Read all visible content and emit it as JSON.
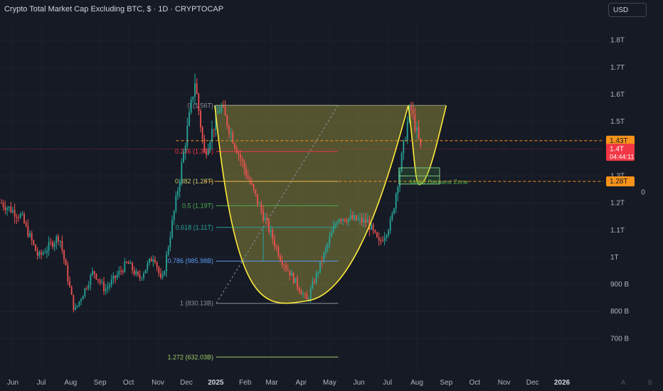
{
  "header": {
    "title": "Crypto Total Market Cap Excluding BTC, $ · 1D · CRYPTOCAP",
    "currency": "USD"
  },
  "price_axis": {
    "ticks": [
      {
        "label": "1.8T",
        "value": 1800
      },
      {
        "label": "1.7T",
        "value": 1700
      },
      {
        "label": "1.6T",
        "value": 1600
      },
      {
        "label": "1.5T",
        "value": 1500
      },
      {
        "label": "1.3T",
        "value": 1300
      },
      {
        "label": "1.2T",
        "value": 1200
      },
      {
        "label": "1.1T",
        "value": 1100
      },
      {
        "label": "1T",
        "value": 1000
      },
      {
        "label": "900 B",
        "value": 900
      },
      {
        "label": "800 B",
        "value": 800
      },
      {
        "label": "700 B",
        "value": 700
      }
    ],
    "badges": [
      {
        "label": "1.43T",
        "value": 1430,
        "color": "#f7931a",
        "text_color": "#131722"
      },
      {
        "label": "1.4T",
        "sub": "04:44:11",
        "value": 1400,
        "color": "#f23645",
        "text_color": "#ffffff"
      },
      {
        "label": "1.28T",
        "value": 1280,
        "color": "#f7931a",
        "text_color": "#131722"
      }
    ],
    "right_label": "0"
  },
  "time_axis": {
    "labels": [
      "Jun",
      "Jul",
      "Aug",
      "Sep",
      "Oct",
      "Nov",
      "Dec",
      "2025",
      "Feb",
      "Mar",
      "Apr",
      "May",
      "Jun",
      "Jul",
      "Aug",
      "Sep",
      "Oct",
      "Nov",
      "Dec",
      "2026"
    ],
    "bold": [
      "2025",
      "2026"
    ],
    "corner_a": "A",
    "corner_b": "B"
  },
  "fib_levels": [
    {
      "label": "0 (1.56T)",
      "value": 1560,
      "color": "#8c8f99"
    },
    {
      "label": "0.236 (1.39T)",
      "value": 1390,
      "color": "#f23645"
    },
    {
      "label": "0.382 (1.28T)",
      "value": 1280,
      "color": "#c9c96a"
    },
    {
      "label": "0.5 (1.19T)",
      "value": 1190,
      "color": "#4caf50"
    },
    {
      "label": "0.618 (1.11T)",
      "value": 1110,
      "color": "#26a69a"
    },
    {
      "label": "0.786 (985.98B)",
      "value": 985.98,
      "color": "#5b9cf6"
    },
    {
      "label": "1 (830.13B)",
      "value": 830.13,
      "color": "#8c8f99"
    },
    {
      "label": "1.272 (632.03B)",
      "value": 632.03,
      "color": "#9ccc65"
    }
  ],
  "annotations": {
    "demand_zone_label": "Major Demand Zone",
    "demand_zone_color": "#4caf50",
    "cup_color": "#ffeb3b",
    "dashed_level_color": "#f7931a",
    "current_price_line_color": "#f23645"
  },
  "colors": {
    "background": "#161a25",
    "up": "#26a69a",
    "down": "#ef5350",
    "text": "#b2b5be"
  },
  "chart_data": {
    "type": "candlestick",
    "instrument": "Crypto Total Market Cap Excluding BTC",
    "interval": "1D",
    "unit": "B",
    "y_range": [
      680,
      1850
    ],
    "x_range": [
      "2024-05-20",
      "2026-02-15"
    ],
    "price_path": [
      [
        "2024-05-20",
        1200
      ],
      [
        "2024-06-10",
        1150
      ],
      [
        "2024-06-28",
        1000
      ],
      [
        "2024-07-20",
        1080
      ],
      [
        "2024-08-05",
        800
      ],
      [
        "2024-08-25",
        950
      ],
      [
        "2024-09-06",
        880
      ],
      [
        "2024-09-30",
        980
      ],
      [
        "2024-10-12",
        920
      ],
      [
        "2024-10-28",
        1010
      ],
      [
        "2024-11-05",
        900
      ],
      [
        "2024-11-22",
        1250
      ],
      [
        "2024-12-10",
        1650
      ],
      [
        "2024-12-20",
        1380
      ],
      [
        "2025-01-06",
        1560
      ],
      [
        "2025-02-03",
        1300
      ],
      [
        "2025-03-10",
        1000
      ],
      [
        "2025-04-07",
        840
      ],
      [
        "2025-05-10",
        1150
      ],
      [
        "2025-06-10",
        1130
      ],
      [
        "2025-06-22",
        1050
      ],
      [
        "2025-07-05",
        1130
      ],
      [
        "2025-07-25",
        1560
      ],
      [
        "2025-08-05",
        1400
      ]
    ],
    "horizontal_levels": [
      1430,
      1400,
      1280
    ],
    "cup_and_handle": {
      "cup": {
        "left": [
          "2024-12-31",
          1560
        ],
        "bottom": [
          "2025-04-08",
          840
        ],
        "right": [
          "2025-07-23",
          1560
        ]
      },
      "handle_bottom": [
        "2025-08-05",
        1270
      ]
    },
    "demand_zone": {
      "from": "2025-07-13",
      "to": "2025-08-25",
      "top": 1330,
      "bottom": 1270
    },
    "fib_anchor": {
      "from": [
        "2024-12-25",
        830.13
      ],
      "to": [
        "2025-05-10",
        1560
      ]
    }
  }
}
